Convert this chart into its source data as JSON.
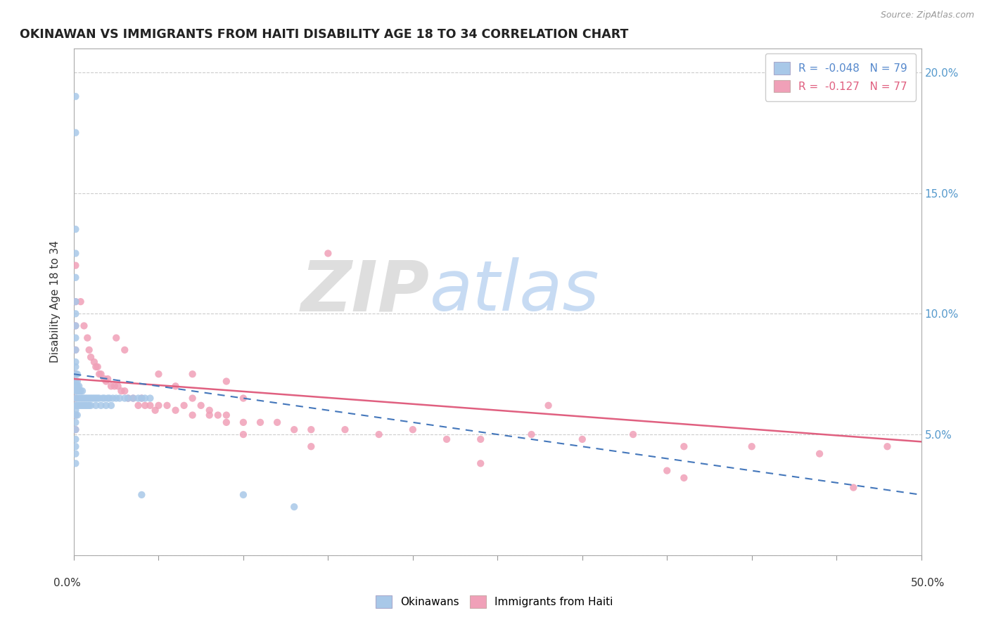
{
  "title": "OKINAWAN VS IMMIGRANTS FROM HAITI DISABILITY AGE 18 TO 34 CORRELATION CHART",
  "source": "Source: ZipAtlas.com",
  "ylabel": "Disability Age 18 to 34",
  "watermark_gray": "ZIP",
  "watermark_blue": "atlas",
  "xlim": [
    0.0,
    0.5
  ],
  "ylim": [
    0.0,
    0.21
  ],
  "yticks_right": [
    0.05,
    0.1,
    0.15,
    0.2
  ],
  "ytick_labels_right": [
    "5.0%",
    "10.0%",
    "15.0%",
    "20.0%"
  ],
  "xticks": [
    0.0,
    0.05,
    0.1,
    0.15,
    0.2,
    0.25,
    0.3,
    0.35,
    0.4,
    0.45,
    0.5
  ],
  "legend_okinawan": "R =  -0.048   N = 79",
  "legend_haiti": "R =  -0.127   N = 77",
  "color_okinawan": "#a8c8e8",
  "color_haiti": "#f0a0b8",
  "color_trend_okinawan": "#4477bb",
  "color_trend_haiti": "#e06080",
  "okinawan_trend": [
    0.0,
    0.5,
    0.075,
    0.025
  ],
  "haiti_trend": [
    0.0,
    0.5,
    0.073,
    0.047
  ],
  "okinawan_x": [
    0.001,
    0.001,
    0.001,
    0.001,
    0.001,
    0.001,
    0.001,
    0.001,
    0.001,
    0.001,
    0.001,
    0.001,
    0.001,
    0.001,
    0.001,
    0.001,
    0.001,
    0.001,
    0.001,
    0.001,
    0.002,
    0.002,
    0.002,
    0.002,
    0.002,
    0.002,
    0.002,
    0.003,
    0.003,
    0.003,
    0.003,
    0.004,
    0.004,
    0.004,
    0.005,
    0.005,
    0.005,
    0.006,
    0.006,
    0.007,
    0.007,
    0.008,
    0.008,
    0.009,
    0.009,
    0.01,
    0.01,
    0.011,
    0.012,
    0.013,
    0.013,
    0.014,
    0.015,
    0.016,
    0.017,
    0.018,
    0.019,
    0.02,
    0.021,
    0.022,
    0.023,
    0.025,
    0.027,
    0.03,
    0.032,
    0.035,
    0.038,
    0.04,
    0.042,
    0.045,
    0.001,
    0.001,
    0.001,
    0.001,
    0.001,
    0.001,
    0.04,
    0.1,
    0.13
  ],
  "okinawan_y": [
    0.19,
    0.175,
    0.135,
    0.125,
    0.115,
    0.105,
    0.1,
    0.095,
    0.09,
    0.085,
    0.08,
    0.078,
    0.075,
    0.072,
    0.07,
    0.068,
    0.065,
    0.062,
    0.06,
    0.058,
    0.075,
    0.072,
    0.07,
    0.068,
    0.065,
    0.062,
    0.058,
    0.07,
    0.068,
    0.065,
    0.062,
    0.068,
    0.065,
    0.062,
    0.068,
    0.065,
    0.062,
    0.065,
    0.062,
    0.065,
    0.062,
    0.065,
    0.062,
    0.065,
    0.062,
    0.065,
    0.062,
    0.065,
    0.065,
    0.065,
    0.062,
    0.065,
    0.065,
    0.062,
    0.065,
    0.065,
    0.062,
    0.065,
    0.065,
    0.062,
    0.065,
    0.065,
    0.065,
    0.065,
    0.065,
    0.065,
    0.065,
    0.065,
    0.065,
    0.065,
    0.055,
    0.052,
    0.048,
    0.045,
    0.042,
    0.038,
    0.025,
    0.025,
    0.02
  ],
  "haiti_x": [
    0.001,
    0.001,
    0.001,
    0.001,
    0.004,
    0.006,
    0.008,
    0.009,
    0.01,
    0.012,
    0.013,
    0.014,
    0.015,
    0.016,
    0.018,
    0.019,
    0.02,
    0.022,
    0.024,
    0.026,
    0.028,
    0.03,
    0.032,
    0.035,
    0.038,
    0.04,
    0.042,
    0.045,
    0.048,
    0.05,
    0.055,
    0.06,
    0.065,
    0.07,
    0.075,
    0.08,
    0.085,
    0.09,
    0.1,
    0.11,
    0.12,
    0.13,
    0.14,
    0.16,
    0.18,
    0.2,
    0.22,
    0.24,
    0.27,
    0.3,
    0.33,
    0.36,
    0.4,
    0.44,
    0.48,
    0.07,
    0.09,
    0.1,
    0.28,
    0.35,
    0.001,
    0.001,
    0.001,
    0.025,
    0.03,
    0.05,
    0.06,
    0.07,
    0.08,
    0.09,
    0.1,
    0.14,
    0.24,
    0.36,
    0.46,
    0.001,
    0.15
  ],
  "haiti_y": [
    0.105,
    0.095,
    0.085,
    0.075,
    0.105,
    0.095,
    0.09,
    0.085,
    0.082,
    0.08,
    0.078,
    0.078,
    0.075,
    0.075,
    0.073,
    0.072,
    0.073,
    0.07,
    0.07,
    0.07,
    0.068,
    0.068,
    0.065,
    0.065,
    0.062,
    0.065,
    0.062,
    0.062,
    0.06,
    0.062,
    0.062,
    0.06,
    0.062,
    0.058,
    0.062,
    0.058,
    0.058,
    0.058,
    0.055,
    0.055,
    0.055,
    0.052,
    0.052,
    0.052,
    0.05,
    0.052,
    0.048,
    0.048,
    0.05,
    0.048,
    0.05,
    0.045,
    0.045,
    0.042,
    0.045,
    0.075,
    0.072,
    0.065,
    0.062,
    0.035,
    0.065,
    0.058,
    0.052,
    0.09,
    0.085,
    0.075,
    0.07,
    0.065,
    0.06,
    0.055,
    0.05,
    0.045,
    0.038,
    0.032,
    0.028,
    0.12,
    0.125
  ]
}
